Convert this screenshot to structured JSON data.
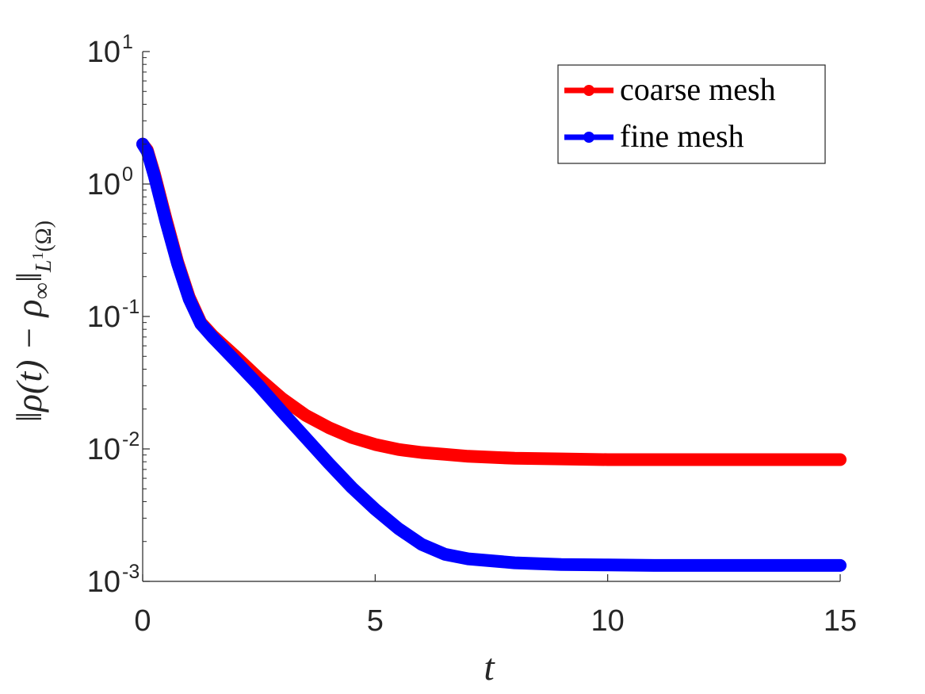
{
  "chart_data": {
    "type": "line",
    "title": "",
    "xlabel": "t",
    "ylabel": "‖ρ(t) − ρ∞‖L¹(Ω)",
    "ylabel_parts": {
      "main": "‖ρ(t) − ρ",
      "sub_inf": "∞",
      "norm": "‖",
      "sub_space": "L",
      "sup_one": "1",
      "sub_omega": "(Ω)"
    },
    "xlim": [
      0,
      15
    ],
    "ylim": [
      0.001,
      10
    ],
    "yscale": "log",
    "x_ticks": [
      "0",
      "5",
      "10",
      "15"
    ],
    "x_tick_values": [
      0,
      5,
      10,
      15
    ],
    "y_ticks": [
      {
        "base": "10",
        "exp": "1",
        "value": 10
      },
      {
        "base": "10",
        "exp": "0",
        "value": 1
      },
      {
        "base": "10",
        "exp": "-1",
        "value": 0.1
      },
      {
        "base": "10",
        "exp": "-2",
        "value": 0.01
      },
      {
        "base": "10",
        "exp": "-3",
        "value": 0.001
      }
    ],
    "grid": false,
    "legend_position": "top-right",
    "series": [
      {
        "name": "coarse mesh",
        "color": "#ff0000",
        "x": [
          0,
          0.1,
          0.25,
          0.5,
          0.75,
          1.0,
          1.25,
          1.5,
          2.0,
          2.5,
          3.0,
          3.5,
          4.0,
          4.5,
          5.0,
          5.5,
          6.0,
          6.5,
          7.0,
          8.0,
          9.0,
          10.0,
          11.0,
          12.0,
          13.0,
          14.0,
          15.0
        ],
        "y": [
          2.0,
          1.8,
          1.2,
          0.55,
          0.26,
          0.14,
          0.09,
          0.072,
          0.05,
          0.034,
          0.024,
          0.018,
          0.0145,
          0.0122,
          0.0108,
          0.0099,
          0.0094,
          0.0091,
          0.0088,
          0.0085,
          0.0084,
          0.0083,
          0.0083,
          0.0083,
          0.0083,
          0.0083,
          0.0083
        ]
      },
      {
        "name": "fine mesh",
        "color": "#0000ff",
        "x": [
          0,
          0.1,
          0.25,
          0.5,
          0.75,
          1.0,
          1.25,
          1.5,
          2.0,
          2.5,
          3.0,
          3.5,
          4.0,
          4.5,
          5.0,
          5.5,
          6.0,
          6.5,
          7.0,
          8.0,
          9.0,
          10.0,
          11.0,
          12.0,
          13.0,
          14.0,
          15.0
        ],
        "y": [
          2.0,
          1.75,
          1.15,
          0.52,
          0.25,
          0.135,
          0.088,
          0.07,
          0.046,
          0.03,
          0.019,
          0.0122,
          0.0078,
          0.0051,
          0.0035,
          0.0025,
          0.0019,
          0.0016,
          0.00148,
          0.00138,
          0.00134,
          0.00133,
          0.00132,
          0.00132,
          0.00132,
          0.00132,
          0.00132
        ]
      }
    ]
  }
}
